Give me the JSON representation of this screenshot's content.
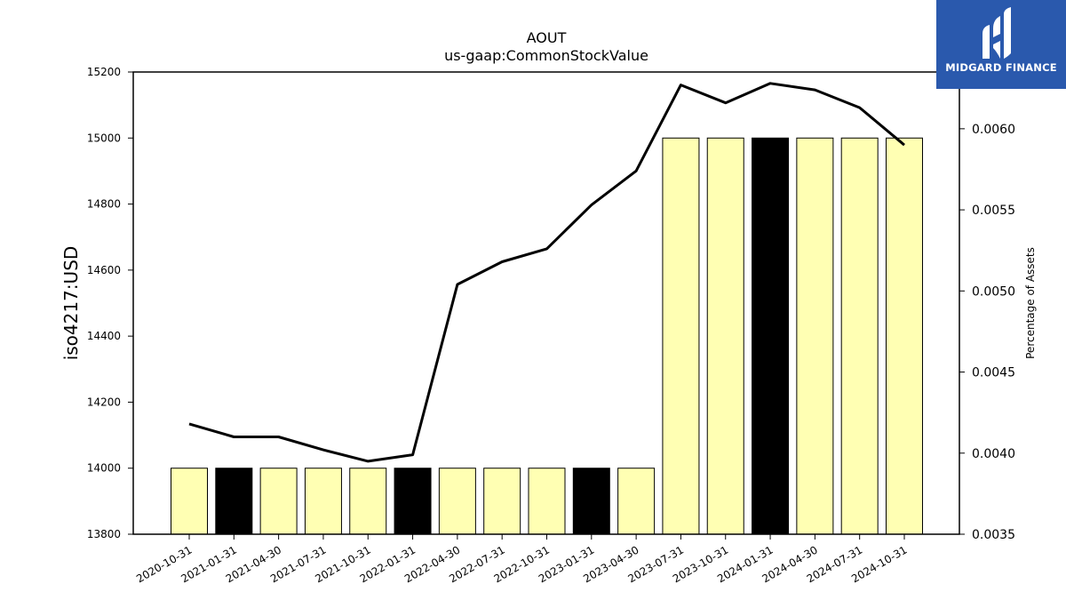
{
  "chart_data": {
    "type": "bar",
    "title": "AOUT",
    "subtitle": "us-gaap:CommonStockValue",
    "ylabel": "iso4217:USD",
    "y2label": "Percentage of Assets",
    "ylim": [
      13800,
      15200
    ],
    "y2lim": [
      0.0035,
      0.00635
    ],
    "yticks": [
      "13800",
      "14000",
      "14200",
      "14400",
      "14600",
      "14800",
      "15000",
      "15200"
    ],
    "y2ticks": [
      "0.0035",
      "0.0040",
      "0.0045",
      "0.0050",
      "0.0055",
      "0.0060"
    ],
    "categories": [
      "2020-10-31",
      "2021-01-31",
      "2021-04-30",
      "2021-07-31",
      "2021-10-31",
      "2022-01-31",
      "2022-04-30",
      "2022-07-31",
      "2022-10-31",
      "2023-01-31",
      "2023-04-30",
      "2023-07-31",
      "2023-10-31",
      "2024-01-31",
      "2024-04-30",
      "2024-07-31",
      "2024-10-31"
    ],
    "series": [
      {
        "type": "bar",
        "axis": "left",
        "values": [
          14000,
          14000,
          14000,
          14000,
          14000,
          14000,
          14000,
          14000,
          14000,
          14000,
          14000,
          15000,
          15000,
          15000,
          15000,
          15000,
          15000
        ],
        "colors": [
          "#ffffb3",
          "#000000",
          "#ffffb3",
          "#ffffb3",
          "#ffffb3",
          "#000000",
          "#ffffb3",
          "#ffffb3",
          "#ffffb3",
          "#000000",
          "#ffffb3",
          "#ffffb3",
          "#ffffb3",
          "#000000",
          "#ffffb3",
          "#ffffb3",
          "#ffffb3"
        ]
      },
      {
        "type": "line",
        "axis": "right",
        "color": "#000000",
        "values": [
          0.00418,
          0.0041,
          0.0041,
          0.00402,
          0.00395,
          0.00399,
          0.00504,
          0.00518,
          0.00526,
          0.00553,
          0.00574,
          0.00627,
          0.00616,
          0.00628,
          0.00624,
          0.00613,
          0.0059
        ]
      }
    ],
    "grid": false,
    "legend": "none"
  },
  "logo": {
    "text": "MIDGARD FINANCE",
    "color": "#2a59ad"
  }
}
